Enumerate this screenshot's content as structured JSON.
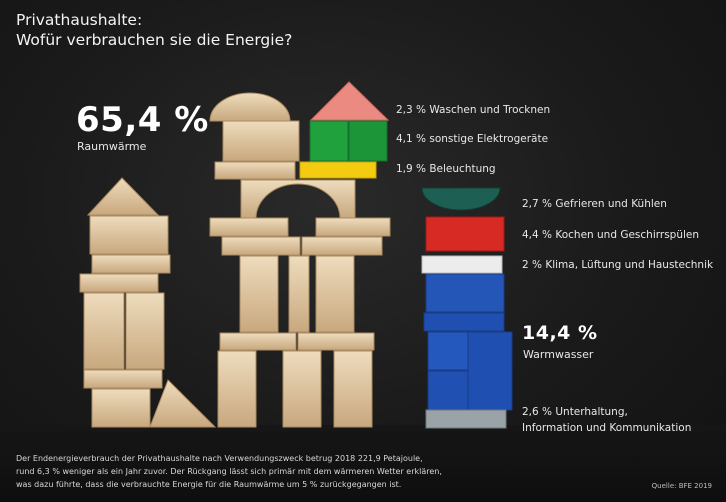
{
  "title": {
    "line1": "Privathaushalte:",
    "line2": "Wofür verbrauchen sie die Energie?"
  },
  "chart_data": {
    "type": "pictorial",
    "series": [
      {
        "name": "Raumwärme",
        "value": 65.4,
        "label": "65,4 %"
      },
      {
        "name": "Waschen und Trocknen",
        "value": 2.3,
        "label": "2,3 % Waschen und Trocknen",
        "color": "#e8897f"
      },
      {
        "name": "sonstige Elektrogeräte",
        "value": 4.1,
        "label": "4,1 % sonstige Elektrogeräte",
        "color": "#1f9a3c"
      },
      {
        "name": "Beleuchtung",
        "value": 1.9,
        "label": "1,9 % Beleuchtung",
        "color": "#f3cc12"
      },
      {
        "name": "Gefrieren und Kühlen",
        "value": 2.7,
        "label": "2,7 % Gefrieren und Kühlen",
        "color": "#1d5f52"
      },
      {
        "name": "Kochen und Geschirrspülen",
        "value": 4.4,
        "label": "4,4 % Kochen und Geschirrspülen",
        "color": "#d82a25"
      },
      {
        "name": "Klima, Lüftung und Haustechnik",
        "value": 2,
        "label": "2 % Klima, Lüftung und Haustechnik",
        "color": "#e9e9e9"
      },
      {
        "name": "Warmwasser",
        "value": 14.4,
        "label": "14,4 %",
        "color": "#1f4fb0"
      },
      {
        "name": "Unterhaltung, Information und Kommunikation",
        "value": 2.6,
        "label_line1": "2,6 % Unterhaltung,",
        "label_line2": "Information und Kommunikation",
        "color": "#9aa3a8"
      }
    ]
  },
  "labels": {
    "raumwaerme_value": "65,4 %",
    "raumwaerme_name": "Raumwärme",
    "warmwasser_value": "14,4 %",
    "warmwasser_name": "Warmwasser"
  },
  "footnote": {
    "line1": "Der Endenergieverbrauch der Privathaushalte nach Verwendungszweck betrug 2018 221,9 Petajoule,",
    "line2": "rund 6,3 % weniger als ein Jahr zuvor. Der Rückgang lässt sich primär mit dem wärmeren Wetter erklären,",
    "line3": "was dazu führte, dass die verbrauchte Energie für die Raumwärme um 5 % zurückgegangen ist."
  },
  "source": "Quelle: BFE 2019"
}
